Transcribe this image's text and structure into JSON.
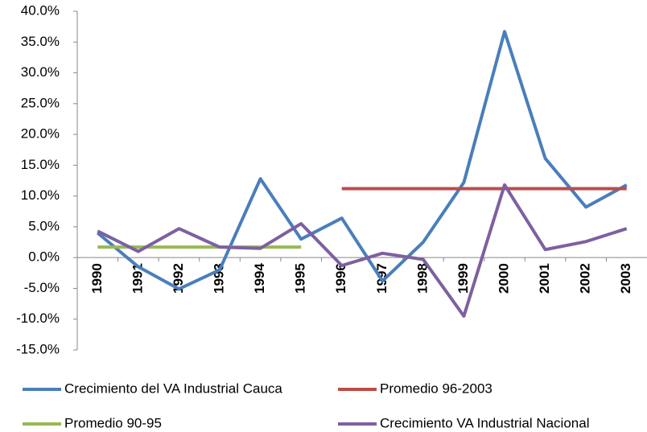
{
  "chart_data": {
    "type": "line",
    "categories": [
      "1990",
      "1991",
      "1992",
      "1993",
      "1994",
      "1995",
      "1996",
      "1997",
      "1998",
      "1999",
      "2000",
      "2001",
      "2002",
      "2003"
    ],
    "series": [
      {
        "name": "Crecimiento del VA Industrial Cauca",
        "color": "#4a7ebb",
        "values": [
          4.0,
          -1.5,
          -5.1,
          -2.0,
          12.8,
          3.0,
          6.4,
          -3.8,
          2.5,
          12.2,
          36.7,
          16.1,
          8.2,
          11.8
        ]
      },
      {
        "name": "Promedio 96-2003",
        "color": "#be4b48",
        "values": [
          null,
          null,
          null,
          null,
          null,
          null,
          11.2,
          11.2,
          11.2,
          11.2,
          11.2,
          11.2,
          11.2,
          11.2
        ]
      },
      {
        "name": "Promedio 90-95",
        "color": "#98b954",
        "values": [
          1.7,
          1.7,
          1.7,
          1.7,
          1.7,
          1.7,
          null,
          null,
          null,
          null,
          null,
          null,
          null,
          null
        ]
      },
      {
        "name": "Crecimiento VA Industrial Nacional",
        "color": "#7d60a0",
        "values": [
          4.3,
          1.0,
          4.7,
          1.7,
          1.5,
          5.5,
          -1.3,
          0.7,
          -0.3,
          -9.5,
          11.8,
          1.3,
          2.6,
          4.7
        ]
      }
    ],
    "ylim": [
      -15,
      40
    ],
    "yticks": [
      {
        "value": -15,
        "label": "-15.0%"
      },
      {
        "value": -10,
        "label": "-10.0%"
      },
      {
        "value": -5,
        "label": "-5.0%"
      },
      {
        "value": 0,
        "label": "0.0%"
      },
      {
        "value": 5,
        "label": "5.0%"
      },
      {
        "value": 10,
        "label": "10.0%"
      },
      {
        "value": 15,
        "label": "15.0%"
      },
      {
        "value": 20,
        "label": "20.0%"
      },
      {
        "value": 25,
        "label": "25.0%"
      },
      {
        "value": 30,
        "label": "30.0%"
      },
      {
        "value": 35,
        "label": "35.0%"
      },
      {
        "value": 40,
        "label": "40.0%"
      }
    ],
    "grid": false
  }
}
